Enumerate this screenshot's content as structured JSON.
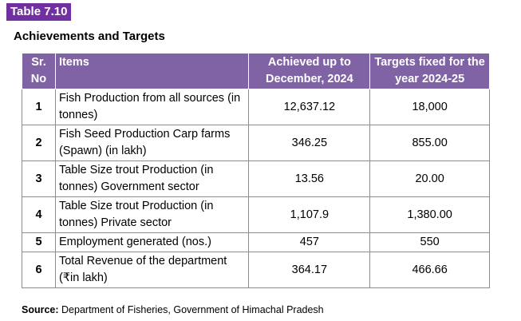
{
  "table_label": "Table 7.10",
  "heading": "Achievements and Targets",
  "columns": {
    "sr": "Sr. No",
    "items": "Items",
    "achieved": "Achieved up to December, 2024",
    "targets": "Targets fixed for the year 2024-25"
  },
  "rows": [
    {
      "sr": "1",
      "item": "Fish Production from all sources (in tonnes)",
      "achieved": "12,637.12",
      "target": "18,000"
    },
    {
      "sr": "2",
      "item": "Fish Seed Production Carp farms (Spawn) (in lakh)",
      "achieved": "346.25",
      "target": "855.00"
    },
    {
      "sr": "3",
      "item": "Table Size trout Production (in tonnes) Government sector",
      "achieved": "13.56",
      "target": "20.00"
    },
    {
      "sr": "4",
      "item": "Table Size trout Production (in tonnes) Private sector",
      "achieved": "1,107.9",
      "target": "1,380.00"
    },
    {
      "sr": "5",
      "item": "Employment generated (nos.)",
      "achieved": "457",
      "target": "550"
    },
    {
      "sr": "6",
      "item": "Total Revenue of the department (₹in lakh)",
      "achieved": "364.17",
      "target": "466.66"
    }
  ],
  "source": {
    "label": "Source:",
    "text": " Department of Fisheries, Government of Himachal Pradesh"
  }
}
